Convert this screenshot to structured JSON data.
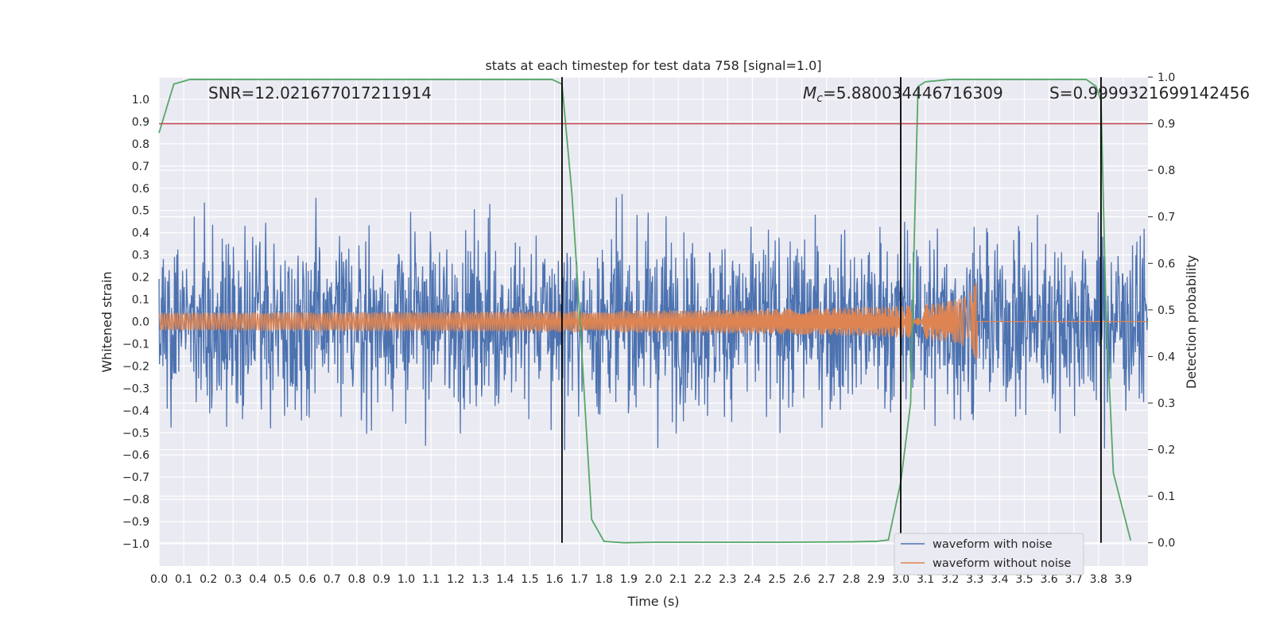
{
  "chart_data": {
    "type": "line",
    "title": "stats at each timestep for test data 758 [signal=1.0]",
    "xlabel": "Time (s)",
    "ylabel": "Whitened strain",
    "y2label": "Detection probability",
    "xlim": [
      0.0,
      4.0
    ],
    "ylim": [
      -1.1,
      1.1
    ],
    "y2lim": [
      -0.05,
      1.0
    ],
    "grid": true,
    "legend_placement": "lower right",
    "x_ticks": [
      "0.0",
      "0.1",
      "0.2",
      "0.3",
      "0.4",
      "0.5",
      "0.6",
      "0.7",
      "0.8",
      "0.9",
      "1.0",
      "1.1",
      "1.2",
      "1.3",
      "1.4",
      "1.5",
      "1.6",
      "1.7",
      "1.8",
      "1.9",
      "2.0",
      "2.1",
      "2.2",
      "2.3",
      "2.4",
      "2.5",
      "2.6",
      "2.7",
      "2.8",
      "2.9",
      "3.0",
      "3.1",
      "3.2",
      "3.3",
      "3.4",
      "3.5",
      "3.6",
      "3.7",
      "3.8",
      "3.9"
    ],
    "y_ticks": [
      "1.0",
      "0.9",
      "0.8",
      "0.7",
      "0.6",
      "0.5",
      "0.4",
      "0.3",
      "0.2",
      "0.1",
      "0.0",
      "−0.1",
      "−0.2",
      "−0.3",
      "−0.4",
      "−0.5",
      "−0.6",
      "−0.7",
      "−0.8",
      "−0.9",
      "−1.0"
    ],
    "y2_ticks": [
      "1.0",
      "0.9",
      "0.8",
      "0.7",
      "0.6",
      "0.5",
      "0.4",
      "0.3",
      "0.2",
      "0.1",
      "0.0"
    ],
    "annotations": {
      "snr": "SNR=12.021677017211914",
      "mc_symbol": "M",
      "mc_sub": "c",
      "mc_value": "=5.880034446716309",
      "s": "S=0.9999321699142456"
    },
    "series": [
      {
        "name": "waveform with noise",
        "color": "#4c72b0",
        "description_only": true
      },
      {
        "name": "waveform without noise",
        "color": "#dd8452",
        "chirp_end_time": 3.31,
        "peak_amplitude": 0.31,
        "start_amplitude": 0.04
      },
      {
        "color": "#55a868",
        "axis": "right",
        "x": [
          0.0,
          0.06,
          0.125,
          0.2,
          1.59,
          1.63,
          1.67,
          1.7,
          1.75,
          1.8,
          1.88,
          2.0,
          2.5,
          2.8,
          2.9,
          2.95,
          3.0,
          3.04,
          3.05,
          3.07,
          3.1,
          3.2,
          3.5,
          3.75,
          3.79,
          3.81,
          3.83,
          3.86,
          3.93
        ],
        "y": [
          0.88,
          0.985,
          0.995,
          0.995,
          0.995,
          0.985,
          0.75,
          0.5,
          0.05,
          0.003,
          0.0,
          0.001,
          0.001,
          0.002,
          0.003,
          0.006,
          0.13,
          0.3,
          0.55,
          0.98,
          0.99,
          0.995,
          0.995,
          0.995,
          0.98,
          0.95,
          0.5,
          0.15,
          0.005
        ]
      },
      {
        "color": "#c44e52",
        "axis": "right",
        "constant": 0.9
      }
    ],
    "vertical_lines": [
      1.63,
      3.0,
      3.81
    ],
    "colors": {
      "background": "#eaeaf2",
      "grid": "#ffffff",
      "noise": "#4c72b0",
      "clean": "#dd8452",
      "prob": "#55a868",
      "threshold": "#c44e52",
      "vline": "#000000"
    }
  }
}
